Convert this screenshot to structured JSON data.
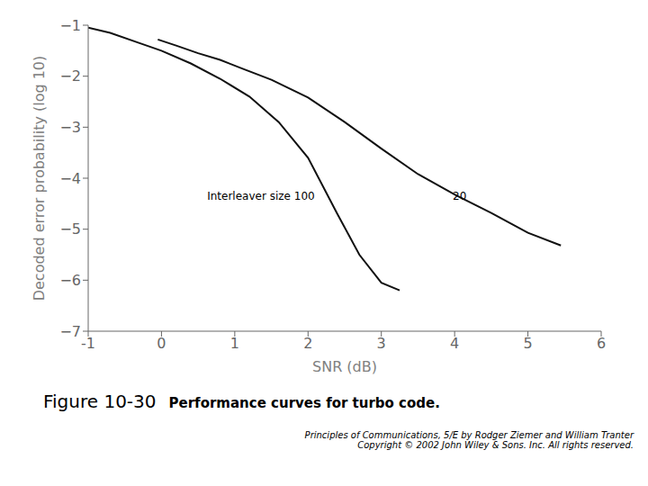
{
  "chart_data": {
    "type": "line",
    "title": "Figure 10-30",
    "subtitle": "Performance curves for turbo code.",
    "x_label": "SNR (dB)",
    "y_label": "Decoded error probability (log 10)",
    "xlim": [
      -1,
      6
    ],
    "ylim": [
      -7,
      -1
    ],
    "xticks": [
      -1,
      0,
      1,
      2,
      3,
      4,
      5,
      6
    ],
    "yticks": [
      {
        "value": -7,
        "label": "−7"
      },
      {
        "value": -6,
        "label": "−6"
      },
      {
        "value": -5,
        "label": "−5"
      },
      {
        "value": -4,
        "label": "−4"
      },
      {
        "value": -3,
        "label": "−3"
      },
      {
        "value": -2,
        "label": "−2"
      },
      {
        "value": -1,
        "label": "−1"
      }
    ],
    "grid": false,
    "series": [
      {
        "color": "#111111",
        "x": [
          -1.0,
          -0.7,
          -0.3,
          0.0,
          0.4,
          0.8,
          1.2,
          1.6,
          2.0,
          2.4,
          2.7,
          3.0,
          3.25
        ],
        "values": [
          -1.05,
          -1.15,
          -1.35,
          -1.5,
          -1.75,
          -2.05,
          -2.4,
          -2.9,
          -3.6,
          -4.7,
          -5.5,
          -6.05,
          -6.2
        ]
      },
      {
        "color": "#111111",
        "x": [
          -0.05,
          0.2,
          0.5,
          0.8,
          1.1,
          1.5,
          2.0,
          2.5,
          3.0,
          3.5,
          4.0,
          4.5,
          5.0,
          5.45
        ],
        "values": [
          -1.28,
          -1.4,
          -1.55,
          -1.68,
          -1.85,
          -2.07,
          -2.42,
          -2.9,
          -3.42,
          -3.92,
          -4.32,
          -4.68,
          -5.07,
          -5.32
        ]
      }
    ],
    "annotations": [
      {
        "text": "Interleaver size 100",
        "x": 0.55,
        "y": -4.35
      },
      {
        "text": "20",
        "x": 3.9,
        "y": -4.35
      },
      {
        "text": "Principles of Communications, 5/E by Rodger Ziemer and William Tranter\nCopyright © 2002 John Wiley & Sons. Inc. All rights reserved."
      }
    ]
  }
}
